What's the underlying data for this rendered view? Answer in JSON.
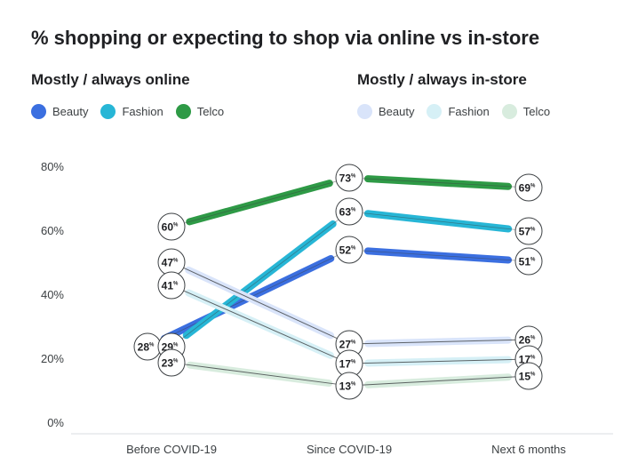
{
  "chart_data": {
    "type": "line",
    "title": "% shopping or expecting to shop via online vs in-store",
    "categories": [
      "Before COVID-19",
      "Since COVID-19",
      "Next 6 months"
    ],
    "yticks": [
      "0%",
      "20%",
      "40%",
      "60%",
      "80%"
    ],
    "ylim": [
      0,
      80
    ],
    "groups": [
      {
        "name": "Mostly / always online",
        "series": [
          {
            "name": "Beauty",
            "color": "#3b6fe0",
            "values": [
              28,
              52,
              51
            ]
          },
          {
            "name": "Fashion",
            "color": "#27b6d6",
            "values": [
              29,
              63,
              57
            ]
          },
          {
            "name": "Telco",
            "color": "#2e9a46",
            "values": [
              60,
              73,
              69
            ]
          }
        ]
      },
      {
        "name": "Mostly / always in-store",
        "series": [
          {
            "name": "Beauty",
            "color": "#d9e4fa",
            "values": [
              47,
              27,
              26
            ]
          },
          {
            "name": "Fashion",
            "color": "#d6f0f6",
            "values": [
              41,
              17,
              17
            ]
          },
          {
            "name": "Telco",
            "color": "#d8ecde",
            "values": [
              23,
              13,
              15
            ]
          }
        ]
      }
    ]
  }
}
